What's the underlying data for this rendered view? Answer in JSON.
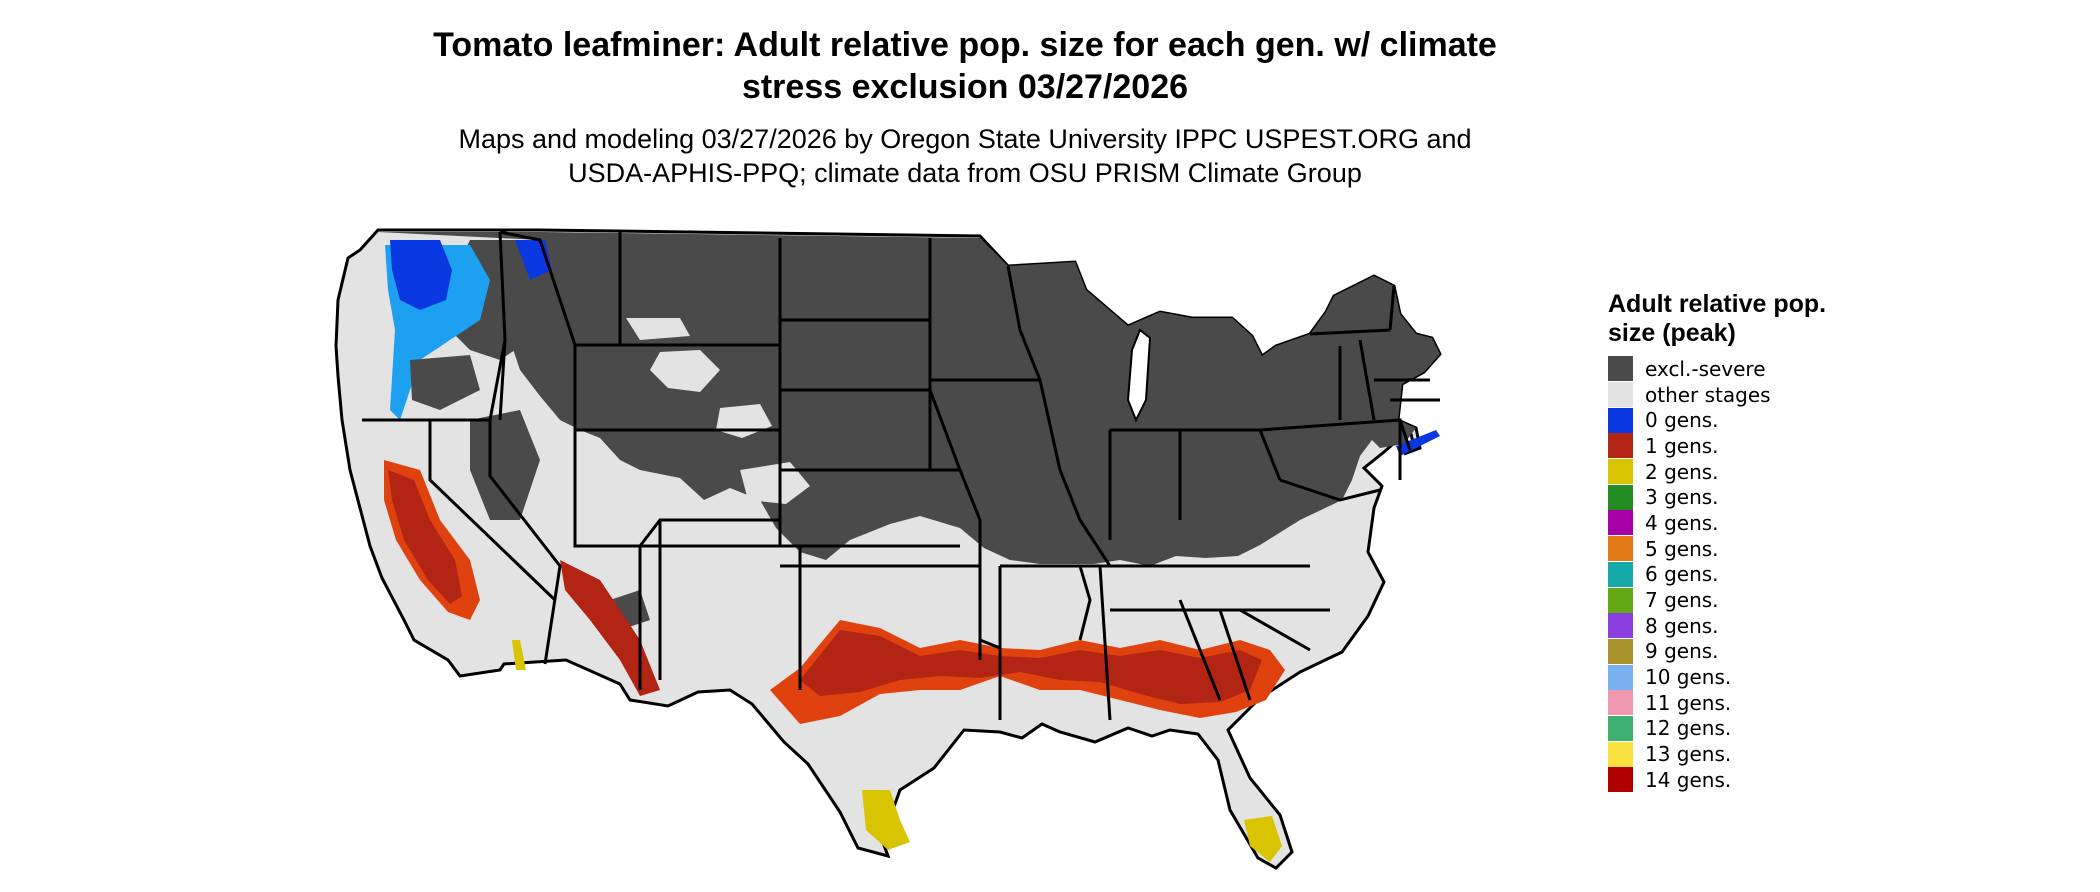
{
  "title": "Tomato leafminer: Adult relative pop. size for each gen. w/ climate stress exclusion 03/27/2026",
  "subtitle": "Maps and modeling 03/27/2026 by Oregon State University IPPC USPEST.ORG and USDA-APHIS-PPQ; climate data from OSU PRISM Climate Group",
  "legend": {
    "title": "Adult relative pop. size (peak)",
    "items": [
      {
        "label": "excl.-severe",
        "color": "#4a4a4a"
      },
      {
        "label": "other stages",
        "color": "#e3e3e3"
      },
      {
        "label": "0 gens.",
        "color": "#0a38e0"
      },
      {
        "label": "1 gens.",
        "color": "#b22414"
      },
      {
        "label": "2 gens.",
        "color": "#d8c400"
      },
      {
        "label": "3 gens.",
        "color": "#228b22"
      },
      {
        "label": "4 gens.",
        "color": "#a800a8"
      },
      {
        "label": "5 gens.",
        "color": "#e07814"
      },
      {
        "label": "6 gens.",
        "color": "#14a8a8"
      },
      {
        "label": "7 gens.",
        "color": "#64a814"
      },
      {
        "label": "8 gens.",
        "color": "#8a3ee0"
      },
      {
        "label": "9 gens.",
        "color": "#a8902a"
      },
      {
        "label": "10 gens.",
        "color": "#78b0f0"
      },
      {
        "label": "11 gens.",
        "color": "#f098b0"
      },
      {
        "label": "12 gens.",
        "color": "#3cb070"
      },
      {
        "label": "13 gens.",
        "color": "#f8e040"
      },
      {
        "label": "14 gens.",
        "color": "#b00000"
      }
    ]
  },
  "map": {
    "colors": {
      "background_land": "#e3e3e3",
      "excluded": "#4a4a4a",
      "gens_1": "#b22414",
      "gens_1_edge": "#e0420f",
      "gens_2": "#d8c400",
      "gens_0": "#0a38e0",
      "gens_0_light": "#1ea0f0",
      "border": "#000000"
    }
  }
}
